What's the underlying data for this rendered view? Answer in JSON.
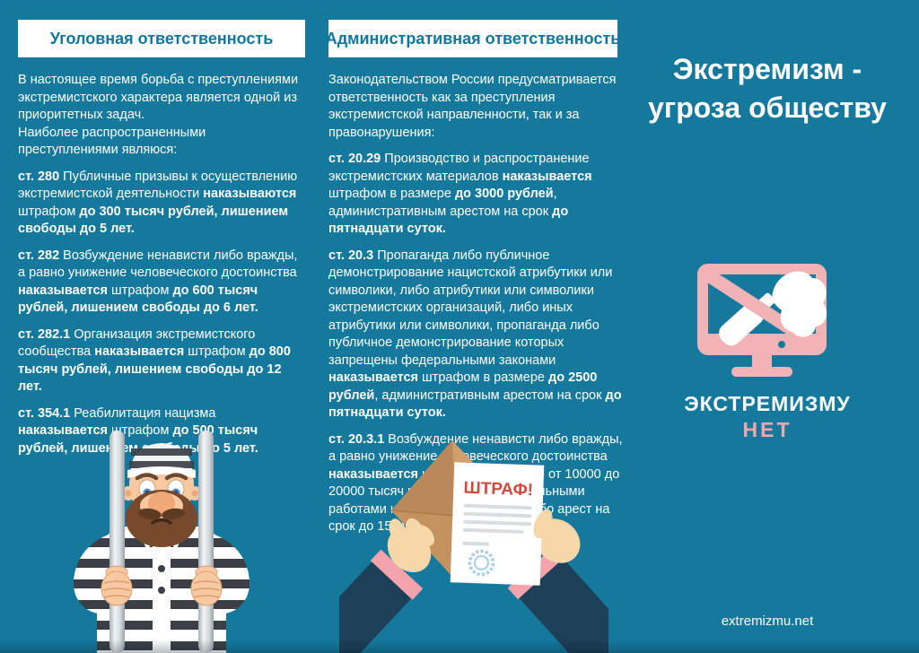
{
  "palette": {
    "background_teal": "#15799e",
    "header_text_teal": "#0f78a2",
    "accent_pink": "#f2b3b6",
    "nyet_pink": "#f2a7ad",
    "fine_red": "#d14b41",
    "sleeve_navy": "#1e3f58"
  },
  "left_column": {
    "header": "Уголовная ответственность",
    "paragraphs": [
      {
        "segments": [
          {
            "t": "В настоящее время борьба с преступлениями экстремистского характера является одной из приоритетных задач.\nНаиболее распространенными преступлениями являюся:",
            "b": false
          }
        ]
      },
      {
        "segments": [
          {
            "t": "ст. 280 ",
            "b": true
          },
          {
            "t": "Публичные призывы к осуществлению экстремистской деятельности ",
            "b": false
          },
          {
            "t": "наказываются ",
            "b": true
          },
          {
            "t": "штрафом ",
            "b": false
          },
          {
            "t": "до 300 тысяч рублей, лишением свободы до 5 лет.",
            "b": true
          }
        ]
      },
      {
        "segments": [
          {
            "t": "ст. 282 ",
            "b": true
          },
          {
            "t": "Возбуждение ненависти либо вражды, а равно унижение человеческого достоинства ",
            "b": false
          },
          {
            "t": "наказывается ",
            "b": true
          },
          {
            "t": "штрафом ",
            "b": false
          },
          {
            "t": "до 600 тысяч рублей, лишением свободы до 6 лет.",
            "b": true
          }
        ]
      },
      {
        "segments": [
          {
            "t": "ст. 282.1 ",
            "b": true
          },
          {
            "t": "Организация экстремистского сообщества ",
            "b": false
          },
          {
            "t": "наказывается ",
            "b": true
          },
          {
            "t": "штрафом ",
            "b": false
          },
          {
            "t": "до 800 тысяч рублей, лишением свободы до 12 лет.",
            "b": true
          }
        ]
      },
      {
        "segments": [
          {
            "t": "ст. 354.1 ",
            "b": true
          },
          {
            "t": "Реабилитация нацизма ",
            "b": false
          },
          {
            "t": "наказывается ",
            "b": true
          },
          {
            "t": "штрафом ",
            "b": false
          },
          {
            "t": "до 500 тысяч рублей, лишением свободы до 5 лет.",
            "b": true
          }
        ]
      }
    ]
  },
  "middle_column": {
    "header": "Административная ответственность",
    "paragraphs": [
      {
        "segments": [
          {
            "t": "Законодательством России предусматривается ответственность как за преступления экстремистской направленности, так и за правонарушения:",
            "b": false
          }
        ]
      },
      {
        "segments": [
          {
            "t": "ст. 20.29 ",
            "b": true
          },
          {
            "t": "Производство и распространение экстремистских материалов ",
            "b": false
          },
          {
            "t": "наказывается ",
            "b": true
          },
          {
            "t": "штрафом в размере ",
            "b": false
          },
          {
            "t": "до 3000 рублей",
            "b": true
          },
          {
            "t": ", административным арестом на срок ",
            "b": false
          },
          {
            "t": "до пятнадцати суток.",
            "b": true
          }
        ]
      },
      {
        "segments": [
          {
            "t": "ст. 20.3 ",
            "b": true
          },
          {
            "t": "Пропаганда либо публичное демонстрирование нацистской атрибутики или символики, либо атрибутики или символики экстремистских организаций, либо иных атрибутики или символики, пропаганда либо публичное демонстрирование которых запрещены федеральными законами ",
            "b": false
          },
          {
            "t": "наказывается ",
            "b": true
          },
          {
            "t": "штрафом в размере ",
            "b": false
          },
          {
            "t": "до 2500 рублей",
            "b": true
          },
          {
            "t": ", административным арестом на срок ",
            "b": false
          },
          {
            "t": "до пятнадцати суток.",
            "b": true
          }
        ]
      },
      {
        "segments": [
          {
            "t": "ст. 20.3.1 ",
            "b": true
          },
          {
            "t": "Возбуждение ненависти либо вражды, а равно унижение человеческого достоинства ",
            "b": false
          },
          {
            "t": "наказывается ",
            "b": true
          },
          {
            "t": "штрафом в размере от 10000 до 20000 тысяч рублей, либо обязательными работами на срок до 100 часов, либо арест на срок до 15 суток.",
            "b": false
          }
        ]
      }
    ]
  },
  "right_column": {
    "title_line1": "Экстремизм -",
    "title_line2": "угроза обществу",
    "logo_icon": "crossed-out-molotov-on-monitor",
    "logo_text_top": "ЭКСТРЕМИЗМУ",
    "logo_text_bottom": "НЕТ",
    "website": "extremizmu.net"
  },
  "illustrations": {
    "prisoner": "prisoner-behind-bars",
    "fine_letter": "hands-holding-fine-letter",
    "fine_title": "ШТРАФ!"
  }
}
